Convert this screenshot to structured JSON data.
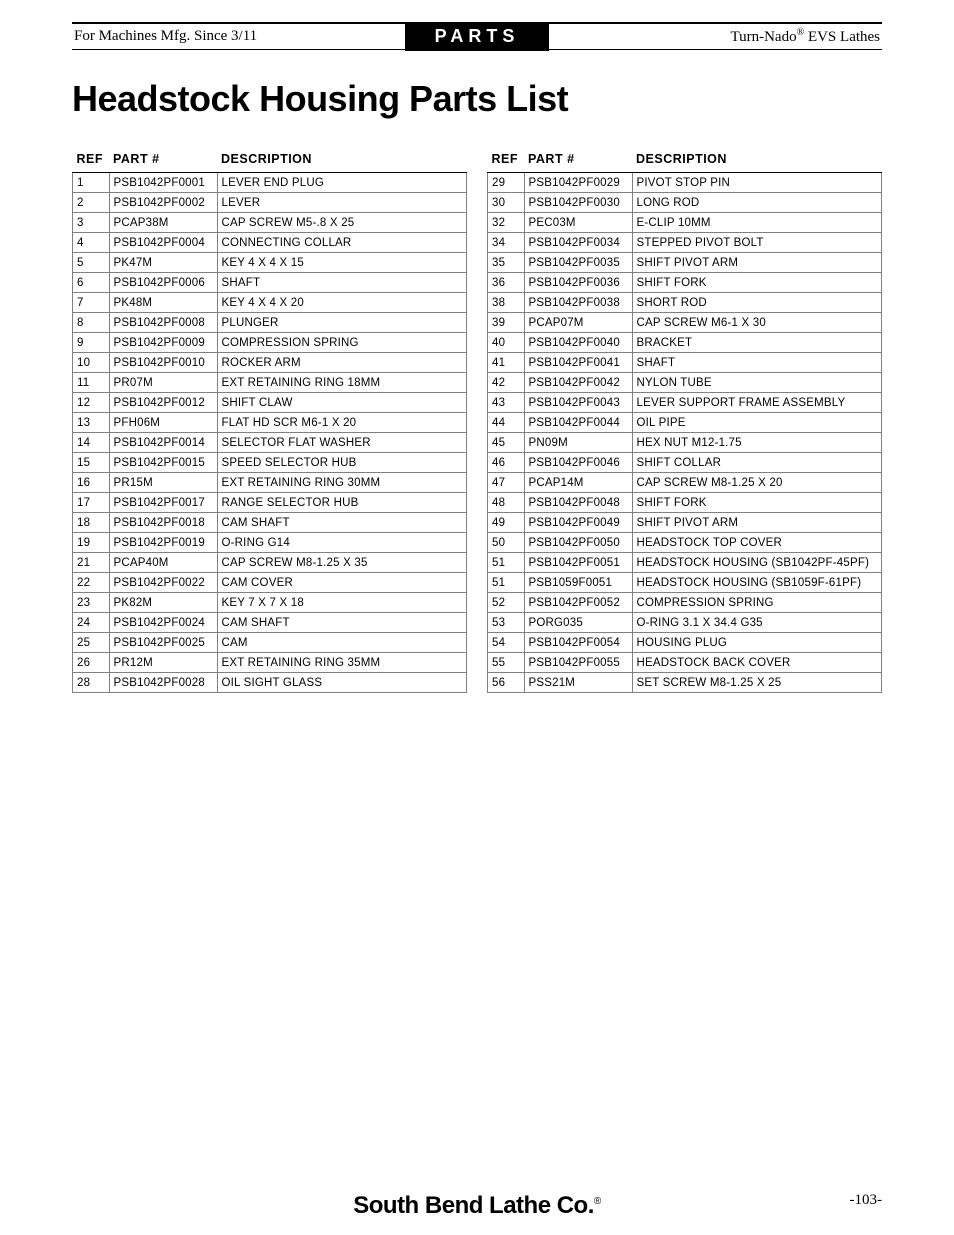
{
  "header": {
    "left": "For Machines Mfg. Since 3/11",
    "center": "PARTS",
    "right_prefix": "Turn-Nado",
    "right_suffix": " EVS Lathes"
  },
  "title": "Headstock Housing Parts List",
  "columns": {
    "ref": "REF",
    "part": "PART #",
    "desc": "DESCRIPTION"
  },
  "table1": [
    {
      "ref": "1",
      "part": "PSB1042PF0001",
      "desc": "LEVER END PLUG"
    },
    {
      "ref": "2",
      "part": "PSB1042PF0002",
      "desc": "LEVER"
    },
    {
      "ref": "3",
      "part": "PCAP38M",
      "desc": "CAP SCREW M5-.8 X 25"
    },
    {
      "ref": "4",
      "part": "PSB1042PF0004",
      "desc": "CONNECTING COLLAR"
    },
    {
      "ref": "5",
      "part": "PK47M",
      "desc": "KEY 4 X 4 X 15"
    },
    {
      "ref": "6",
      "part": "PSB1042PF0006",
      "desc": "SHAFT"
    },
    {
      "ref": "7",
      "part": "PK48M",
      "desc": "KEY 4 X 4 X 20"
    },
    {
      "ref": "8",
      "part": "PSB1042PF0008",
      "desc": "PLUNGER"
    },
    {
      "ref": "9",
      "part": "PSB1042PF0009",
      "desc": "COMPRESSION SPRING"
    },
    {
      "ref": "10",
      "part": "PSB1042PF0010",
      "desc": "ROCKER ARM"
    },
    {
      "ref": "11",
      "part": "PR07M",
      "desc": "EXT RETAINING RING 18MM"
    },
    {
      "ref": "12",
      "part": "PSB1042PF0012",
      "desc": "SHIFT CLAW"
    },
    {
      "ref": "13",
      "part": "PFH06M",
      "desc": "FLAT HD SCR M6-1 X 20"
    },
    {
      "ref": "14",
      "part": "PSB1042PF0014",
      "desc": "SELECTOR FLAT WASHER"
    },
    {
      "ref": "15",
      "part": "PSB1042PF0015",
      "desc": "SPEED SELECTOR HUB"
    },
    {
      "ref": "16",
      "part": "PR15M",
      "desc": "EXT RETAINING RING 30MM"
    },
    {
      "ref": "17",
      "part": "PSB1042PF0017",
      "desc": "RANGE SELECTOR HUB"
    },
    {
      "ref": "18",
      "part": "PSB1042PF0018",
      "desc": "CAM SHAFT"
    },
    {
      "ref": "19",
      "part": "PSB1042PF0019",
      "desc": "O-RING G14"
    },
    {
      "ref": "21",
      "part": "PCAP40M",
      "desc": "CAP SCREW M8-1.25 X 35"
    },
    {
      "ref": "22",
      "part": "PSB1042PF0022",
      "desc": "CAM COVER"
    },
    {
      "ref": "23",
      "part": "PK82M",
      "desc": "KEY 7 X 7 X 18"
    },
    {
      "ref": "24",
      "part": "PSB1042PF0024",
      "desc": "CAM SHAFT"
    },
    {
      "ref": "25",
      "part": "PSB1042PF0025",
      "desc": "CAM"
    },
    {
      "ref": "26",
      "part": "PR12M",
      "desc": "EXT RETAINING RING 35MM"
    },
    {
      "ref": "28",
      "part": "PSB1042PF0028",
      "desc": "OIL SIGHT GLASS"
    }
  ],
  "table2": [
    {
      "ref": "29",
      "part": "PSB1042PF0029",
      "desc": "PIVOT STOP PIN"
    },
    {
      "ref": "30",
      "part": "PSB1042PF0030",
      "desc": "LONG ROD"
    },
    {
      "ref": "32",
      "part": "PEC03M",
      "desc": "E-CLIP 10MM"
    },
    {
      "ref": "34",
      "part": "PSB1042PF0034",
      "desc": "STEPPED PIVOT BOLT"
    },
    {
      "ref": "35",
      "part": "PSB1042PF0035",
      "desc": "SHIFT PIVOT ARM"
    },
    {
      "ref": "36",
      "part": "PSB1042PF0036",
      "desc": "SHIFT FORK"
    },
    {
      "ref": "38",
      "part": "PSB1042PF0038",
      "desc": "SHORT ROD"
    },
    {
      "ref": "39",
      "part": "PCAP07M",
      "desc": "CAP SCREW M6-1 X 30"
    },
    {
      "ref": "40",
      "part": "PSB1042PF0040",
      "desc": "BRACKET"
    },
    {
      "ref": "41",
      "part": "PSB1042PF0041",
      "desc": "SHAFT"
    },
    {
      "ref": "42",
      "part": "PSB1042PF0042",
      "desc": "NYLON TUBE"
    },
    {
      "ref": "43",
      "part": "PSB1042PF0043",
      "desc": "LEVER SUPPORT FRAME ASSEMBLY"
    },
    {
      "ref": "44",
      "part": "PSB1042PF0044",
      "desc": "OIL PIPE"
    },
    {
      "ref": "45",
      "part": "PN09M",
      "desc": "HEX NUT M12-1.75"
    },
    {
      "ref": "46",
      "part": "PSB1042PF0046",
      "desc": "SHIFT COLLAR"
    },
    {
      "ref": "47",
      "part": "PCAP14M",
      "desc": "CAP SCREW M8-1.25 X 20"
    },
    {
      "ref": "48",
      "part": "PSB1042PF0048",
      "desc": "SHIFT FORK"
    },
    {
      "ref": "49",
      "part": "PSB1042PF0049",
      "desc": "SHIFT PIVOT ARM"
    },
    {
      "ref": "50",
      "part": "PSB1042PF0050",
      "desc": "HEADSTOCK TOP COVER"
    },
    {
      "ref": "51",
      "part": "PSB1042PF0051",
      "desc": "HEADSTOCK HOUSING (SB1042PF-45PF)"
    },
    {
      "ref": "51",
      "part": "PSB1059F0051",
      "desc": "HEADSTOCK HOUSING (SB1059F-61PF)"
    },
    {
      "ref": "52",
      "part": "PSB1042PF0052",
      "desc": "COMPRESSION SPRING"
    },
    {
      "ref": "53",
      "part": "PORG035",
      "desc": "O-RING 3.1 X 34.4 G35"
    },
    {
      "ref": "54",
      "part": "PSB1042PF0054",
      "desc": "HOUSING PLUG"
    },
    {
      "ref": "55",
      "part": "PSB1042PF0055",
      "desc": "HEADSTOCK BACK COVER"
    },
    {
      "ref": "56",
      "part": "PSS21M",
      "desc": "SET SCREW M8-1.25 X 25"
    }
  ],
  "footer": {
    "company": "South Bend Lathe Co.",
    "page": "-103-"
  }
}
